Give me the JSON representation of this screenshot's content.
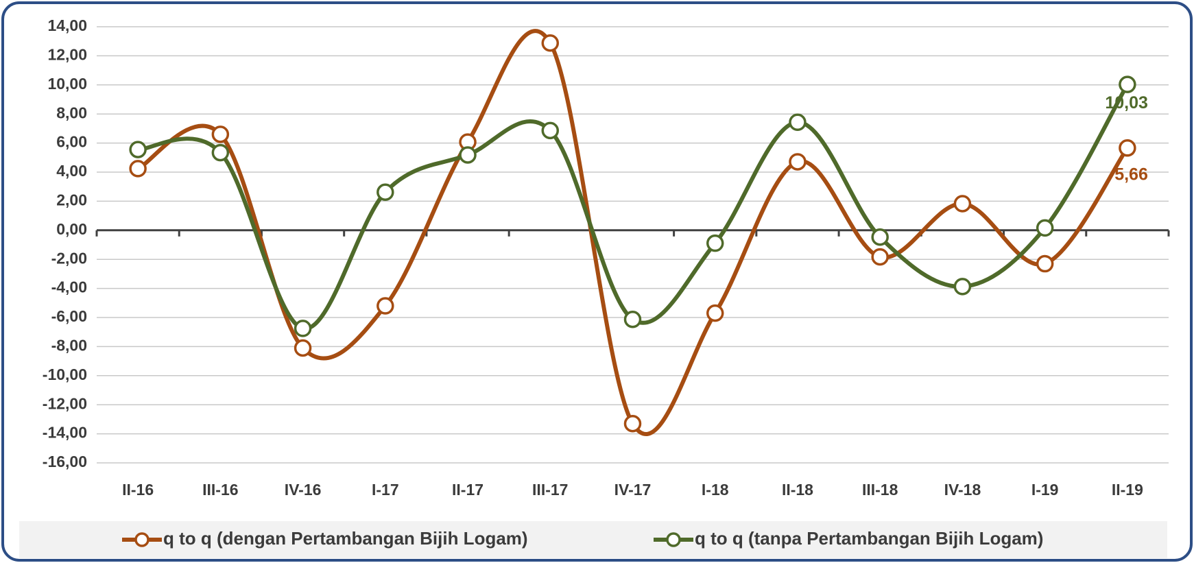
{
  "chart_data": {
    "type": "line",
    "categories": [
      "II-16",
      "III-16",
      "IV-16",
      "I-17",
      "II-17",
      "III-17",
      "IV-17",
      "I-18",
      "II-18",
      "III-18",
      "IV-18",
      "I-19",
      "II-19"
    ],
    "series": [
      {
        "name": "q to q (dengan Pertambangan Bijih Logam)",
        "color": "#a64d12",
        "values": [
          4.24,
          6.6,
          -8.1,
          -5.2,
          6.07,
          12.88,
          -13.3,
          -5.7,
          4.71,
          -1.83,
          1.83,
          -2.3,
          5.66
        ],
        "value_labels": [
          null,
          null,
          null,
          null,
          null,
          null,
          null,
          null,
          null,
          null,
          null,
          null,
          "5,66"
        ]
      },
      {
        "name": "q to q (tanpa Pertambangan Bijih Logam)",
        "color": "#4f6a2a",
        "values": [
          5.55,
          5.34,
          -6.75,
          2.62,
          5.18,
          6.86,
          -6.13,
          -0.89,
          7.43,
          -0.47,
          -3.87,
          0.16,
          10.03
        ],
        "value_labels": [
          null,
          null,
          null,
          null,
          null,
          null,
          null,
          null,
          null,
          null,
          null,
          null,
          "10,03"
        ]
      }
    ],
    "ylim": [
      -16,
      14
    ],
    "yticks": [
      {
        "value": 14,
        "label": "14,00"
      },
      {
        "value": 12,
        "label": "12,00"
      },
      {
        "value": 10,
        "label": "10,00"
      },
      {
        "value": 8,
        "label": "8,00"
      },
      {
        "value": 6,
        "label": "6,00"
      },
      {
        "value": 4,
        "label": "4,00"
      },
      {
        "value": 2,
        "label": "2,00"
      },
      {
        "value": 0,
        "label": "0,00"
      },
      {
        "value": -2,
        "label": "-2,00"
      },
      {
        "value": -4,
        "label": "-4,00"
      },
      {
        "value": -6,
        "label": "-6,00"
      },
      {
        "value": -8,
        "label": "-8,00"
      },
      {
        "value": -10,
        "label": "-10,00"
      },
      {
        "value": -12,
        "label": "-12,00"
      },
      {
        "value": -14,
        "label": "-14,00"
      },
      {
        "value": -16,
        "label": "-16,00"
      }
    ],
    "grid": true,
    "legend": "bottom"
  }
}
